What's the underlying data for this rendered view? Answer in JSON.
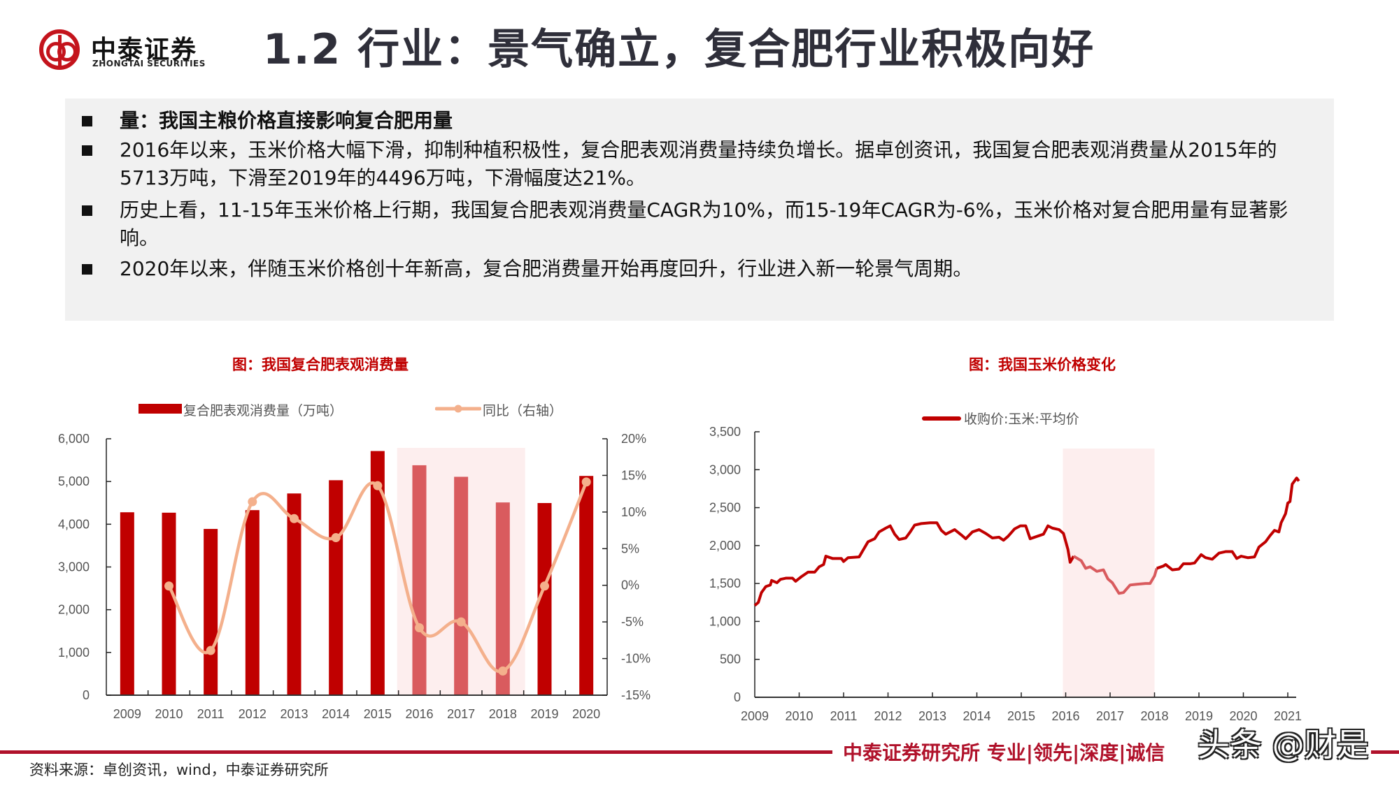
{
  "header": {
    "logo_cn": "中泰证券",
    "logo_en": "ZHONGTAI SECURITIES",
    "title": "1.2 行业：景气确立，复合肥行业积极向好"
  },
  "summary": {
    "bullets": [
      {
        "text": "量：我国主粮价格直接影响复合肥用量",
        "bold": true
      },
      {
        "text": "2016年以来，玉米价格大幅下滑，抑制种植积极性，复合肥表观消费量持续负增长。据卓创资讯，我国复合肥表观消费量从2015年的5713万吨，下滑至2019年的4496万吨，下滑幅度达21%。",
        "bold": false
      },
      {
        "text": "历史上看，11-15年玉米价格上行期，我国复合肥表观消费量CAGR为10%，而15-19年CAGR为-6%，玉米价格对复合肥用量有显著影响。",
        "bold": false
      },
      {
        "text": "2020年以来，伴随玉米价格创十年新高，复合肥消费量开始再度回升，行业进入新一轮景气周期。",
        "bold": false
      }
    ]
  },
  "colors": {
    "brand_red": "#c00000",
    "bar_highlight": "#d95b5e",
    "line_yoy": "#f4b08c",
    "shade": "#fdeeee",
    "footer_red": "#b0112a"
  },
  "chart_data": [
    {
      "type": "bar",
      "title": "图：我国复合肥表观消费量",
      "categories": [
        "2009",
        "2010",
        "2011",
        "2012",
        "2013",
        "2014",
        "2015",
        "2016",
        "2017",
        "2018",
        "2019",
        "2020"
      ],
      "series": [
        {
          "name": "复合肥表观消费量（万吨）",
          "type": "bar",
          "axis": "left",
          "values": [
            4280,
            4270,
            3890,
            4330,
            4720,
            5030,
            5713,
            5380,
            5110,
            4510,
            4496,
            5130
          ]
        },
        {
          "name": "同比（右轴）",
          "type": "line",
          "axis": "right",
          "unit": "%",
          "values": [
            null,
            -0.1,
            -8.9,
            11.4,
            9.1,
            6.5,
            13.6,
            -5.8,
            -5.0,
            -11.7,
            -0.1,
            14.1
          ]
        }
      ],
      "highlight_range": [
        "2016",
        "2018"
      ],
      "xlabel": "",
      "ylabel": "",
      "ylim": [
        0,
        6000
      ],
      "y_ticks": [
        "0",
        "1,000",
        "2,000",
        "3,000",
        "4,000",
        "5,000",
        "6,000"
      ],
      "y2lim": [
        -15,
        20
      ],
      "y2_ticks": [
        "-15%",
        "-10%",
        "-5%",
        "0%",
        "5%",
        "10%",
        "15%",
        "20%"
      ],
      "legend_position": "top",
      "grid": false
    },
    {
      "type": "line",
      "title": "图：我国玉米价格变化",
      "series": [
        {
          "name": "收购价:玉米:平均价",
          "points": [
            [
              2009.0,
              1210
            ],
            [
              2009.08,
              1250
            ],
            [
              2009.15,
              1380
            ],
            [
              2009.25,
              1460
            ],
            [
              2009.35,
              1480
            ],
            [
              2009.38,
              1540
            ],
            [
              2009.5,
              1510
            ],
            [
              2009.58,
              1555
            ],
            [
              2009.7,
              1570
            ],
            [
              2009.85,
              1570
            ],
            [
              2009.92,
              1530
            ],
            [
              2010.05,
              1590
            ],
            [
              2010.2,
              1650
            ],
            [
              2010.35,
              1650
            ],
            [
              2010.45,
              1720
            ],
            [
              2010.55,
              1750
            ],
            [
              2010.6,
              1860
            ],
            [
              2010.75,
              1830
            ],
            [
              2010.95,
              1830
            ],
            [
              2011.0,
              1790
            ],
            [
              2011.1,
              1840
            ],
            [
              2011.35,
              1850
            ],
            [
              2011.45,
              1950
            ],
            [
              2011.55,
              2050
            ],
            [
              2011.7,
              2090
            ],
            [
              2011.8,
              2180
            ],
            [
              2011.95,
              2230
            ],
            [
              2012.05,
              2260
            ],
            [
              2012.15,
              2150
            ],
            [
              2012.25,
              2080
            ],
            [
              2012.4,
              2100
            ],
            [
              2012.5,
              2180
            ],
            [
              2012.6,
              2270
            ],
            [
              2012.75,
              2290
            ],
            [
              2012.95,
              2300
            ],
            [
              2013.1,
              2300
            ],
            [
              2013.2,
              2200
            ],
            [
              2013.3,
              2150
            ],
            [
              2013.5,
              2210
            ],
            [
              2013.65,
              2140
            ],
            [
              2013.75,
              2090
            ],
            [
              2013.9,
              2180
            ],
            [
              2014.05,
              2210
            ],
            [
              2014.2,
              2160
            ],
            [
              2014.35,
              2100
            ],
            [
              2014.5,
              2110
            ],
            [
              2014.6,
              2070
            ],
            [
              2014.7,
              2120
            ],
            [
              2014.85,
              2220
            ],
            [
              2014.98,
              2260
            ],
            [
              2015.1,
              2260
            ],
            [
              2015.2,
              2090
            ],
            [
              2015.35,
              2120
            ],
            [
              2015.5,
              2150
            ],
            [
              2015.6,
              2260
            ],
            [
              2015.7,
              2230
            ],
            [
              2015.85,
              2210
            ],
            [
              2015.95,
              2160
            ],
            [
              2016.05,
              1950
            ],
            [
              2016.1,
              1780
            ],
            [
              2016.18,
              1860
            ],
            [
              2016.35,
              1800
            ],
            [
              2016.45,
              1700
            ],
            [
              2016.55,
              1720
            ],
            [
              2016.7,
              1660
            ],
            [
              2016.85,
              1680
            ],
            [
              2016.95,
              1560
            ],
            [
              2017.05,
              1510
            ],
            [
              2017.2,
              1370
            ],
            [
              2017.3,
              1380
            ],
            [
              2017.45,
              1480
            ],
            [
              2017.6,
              1490
            ],
            [
              2017.8,
              1500
            ],
            [
              2017.9,
              1500
            ],
            [
              2018.0,
              1600
            ],
            [
              2018.05,
              1700
            ],
            [
              2018.2,
              1730
            ],
            [
              2018.25,
              1750
            ],
            [
              2018.4,
              1680
            ],
            [
              2018.55,
              1690
            ],
            [
              2018.65,
              1760
            ],
            [
              2018.8,
              1760
            ],
            [
              2018.9,
              1770
            ],
            [
              2019.05,
              1880
            ],
            [
              2019.15,
              1840
            ],
            [
              2019.3,
              1820
            ],
            [
              2019.45,
              1900
            ],
            [
              2019.6,
              1920
            ],
            [
              2019.75,
              1920
            ],
            [
              2019.85,
              1830
            ],
            [
              2019.95,
              1860
            ],
            [
              2020.1,
              1840
            ],
            [
              2020.25,
              1850
            ],
            [
              2020.35,
              1980
            ],
            [
              2020.5,
              2050
            ],
            [
              2020.6,
              2130
            ],
            [
              2020.7,
              2200
            ],
            [
              2020.8,
              2180
            ],
            [
              2020.85,
              2300
            ],
            [
              2020.95,
              2420
            ],
            [
              2021.0,
              2560
            ],
            [
              2021.05,
              2580
            ],
            [
              2021.1,
              2810
            ],
            [
              2021.2,
              2890
            ],
            [
              2021.25,
              2850
            ]
          ]
        }
      ],
      "highlight_range": [
        2016,
        2018
      ],
      "xlabel": "",
      "ylabel": "",
      "xlim": [
        2009,
        2021.2
      ],
      "x_ticks": [
        "2009",
        "2010",
        "2011",
        "2012",
        "2013",
        "2014",
        "2015",
        "2016",
        "2017",
        "2018",
        "2019",
        "2020",
        "2021"
      ],
      "ylim": [
        0,
        3500
      ],
      "y_ticks": [
        "0",
        "500",
        "1,000",
        "1,500",
        "2,000",
        "2,500",
        "3,000",
        "3,500"
      ],
      "legend_position": "top",
      "grid": false
    }
  ],
  "footer": {
    "slogan": "中泰证券研究所 专业|领先|深度|诚信",
    "watermark": "头条 @财是",
    "source": "资料来源：卓创资讯，wind，中泰证券研究所"
  }
}
